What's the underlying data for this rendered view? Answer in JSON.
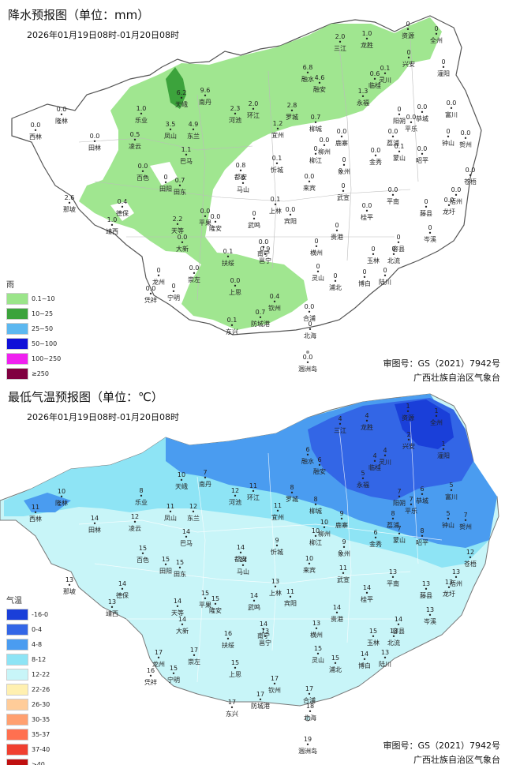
{
  "rain_map": {
    "title": "降水预报图（单位：mm）",
    "period": "2026年01月19日08时-01月20日08时",
    "legend_title": "雨",
    "legend": [
      {
        "label": "0.1~10",
        "color": "#9be58a"
      },
      {
        "label": "10~25",
        "color": "#3ca33c"
      },
      {
        "label": "25~50",
        "color": "#5cb8f0"
      },
      {
        "label": "50~100",
        "color": "#1010d8"
      },
      {
        "label": "100~250",
        "color": "#f020f0"
      },
      {
        "label": "≥250",
        "color": "#800040"
      }
    ],
    "stations": [
      {
        "name": "资源",
        "value": "0"
      },
      {
        "name": "全州",
        "value": "0"
      },
      {
        "name": "龙胜",
        "value": "1.0"
      },
      {
        "name": "三江",
        "value": "2.0"
      },
      {
        "name": "兴安",
        "value": "0"
      },
      {
        "name": "灌阳",
        "value": "0"
      },
      {
        "name": "融安",
        "value": "4.6"
      },
      {
        "name": "融水",
        "value": "6.8"
      },
      {
        "name": "临桂",
        "value": "0.6"
      },
      {
        "name": "灵川",
        "value": "0.1"
      },
      {
        "name": "永福",
        "value": "1.3"
      },
      {
        "name": "天峨",
        "value": "6.2"
      },
      {
        "name": "南丹",
        "value": "9.6"
      },
      {
        "name": "隆林",
        "value": "0.0"
      },
      {
        "name": "西林",
        "value": "0.0"
      },
      {
        "name": "乐业",
        "value": "1.0"
      },
      {
        "name": "环江",
        "value": "2.0"
      },
      {
        "name": "河池",
        "value": "2.3"
      },
      {
        "name": "罗城",
        "value": "2.8"
      },
      {
        "name": "恭城",
        "value": "0.0"
      },
      {
        "name": "阳朔",
        "value": "0"
      },
      {
        "name": "富川",
        "value": "0.0"
      },
      {
        "name": "平乐",
        "value": "0.0"
      },
      {
        "name": "钟山",
        "value": "0"
      },
      {
        "name": "贺州",
        "value": "0.0"
      },
      {
        "name": "田林",
        "value": "0.0"
      },
      {
        "name": "凌云",
        "value": "0.5"
      },
      {
        "name": "凤山",
        "value": "3.5"
      },
      {
        "name": "东兰",
        "value": "4.9"
      },
      {
        "name": "宜州",
        "value": "1.2"
      },
      {
        "name": "柳城",
        "value": "0.7"
      },
      {
        "name": "鹿寨",
        "value": "0.0"
      },
      {
        "name": "荔浦",
        "value": "0.0"
      },
      {
        "name": "柳州",
        "value": "0.0"
      },
      {
        "name": "柳江",
        "value": "0"
      },
      {
        "name": "金秀",
        "value": "0.0"
      },
      {
        "name": "蒙山",
        "value": "0.1"
      },
      {
        "name": "昭平",
        "value": "0.0"
      },
      {
        "name": "巴马",
        "value": "1.1"
      },
      {
        "name": "都安",
        "value": "0.8"
      },
      {
        "name": "忻城",
        "value": "0.1"
      },
      {
        "name": "象州",
        "value": "0"
      },
      {
        "name": "苍梧",
        "value": "0.0"
      },
      {
        "name": "百色",
        "value": "0.0"
      },
      {
        "name": "田阳",
        "value": "0"
      },
      {
        "name": "田东",
        "value": "0.7"
      },
      {
        "name": "马山",
        "value": "0"
      },
      {
        "name": "来宾",
        "value": "0.0"
      },
      {
        "name": "武宣",
        "value": "0"
      },
      {
        "name": "平南",
        "value": "0.0"
      },
      {
        "name": "藤县",
        "value": "0"
      },
      {
        "name": "梧州",
        "value": "0.0"
      },
      {
        "name": "龙圩",
        "value": "0.0"
      },
      {
        "name": "那坡",
        "value": "2.6"
      },
      {
        "name": "德保",
        "value": "0.4"
      },
      {
        "name": "平果",
        "value": "0.0"
      },
      {
        "name": "隆安",
        "value": "0.0"
      },
      {
        "name": "上林",
        "value": "0.1"
      },
      {
        "name": "宾阳",
        "value": "0.0"
      },
      {
        "name": "武鸣",
        "value": "0"
      },
      {
        "name": "桂平",
        "value": "0.0"
      },
      {
        "name": "靖西",
        "value": "1.0"
      },
      {
        "name": "天等",
        "value": "2.2"
      },
      {
        "name": "大新",
        "value": "0.0"
      },
      {
        "name": "贵港",
        "value": "0"
      },
      {
        "name": "岑溪",
        "value": "0"
      },
      {
        "name": "横州",
        "value": "0"
      },
      {
        "name": "容县",
        "value": "0"
      },
      {
        "name": "南宁",
        "value": "0.0"
      },
      {
        "name": "邕宁",
        "value": "0.9"
      },
      {
        "name": "扶绥",
        "value": "0.1"
      },
      {
        "name": "玉林",
        "value": "0"
      },
      {
        "name": "北流",
        "value": "0"
      },
      {
        "name": "龙州",
        "value": "0"
      },
      {
        "name": "崇左",
        "value": "0.0"
      },
      {
        "name": "灵山",
        "value": "0"
      },
      {
        "name": "浦北",
        "value": "0"
      },
      {
        "name": "博白",
        "value": "0"
      },
      {
        "name": "陆川",
        "value": "0"
      },
      {
        "name": "凭祥",
        "value": "0.0"
      },
      {
        "name": "宁明",
        "value": "0"
      },
      {
        "name": "上思",
        "value": "0.0"
      },
      {
        "name": "钦州",
        "value": "0.4"
      },
      {
        "name": "防城港",
        "value": "0.7"
      },
      {
        "name": "合浦",
        "value": "0.0"
      },
      {
        "name": "东兴",
        "value": "0.1"
      },
      {
        "name": "北海",
        "value": "0"
      },
      {
        "name": "涠洲岛",
        "value": "0.0"
      }
    ],
    "credit_approval": "审图号：GS（2021）7942号",
    "credit_org": "广西壮族自治区气象台"
  },
  "temp_map": {
    "title": "最低气温预报图（单位：℃）",
    "period": "2026年01月19日08时-01月20日08时",
    "legend_title": "气温",
    "legend": [
      {
        "label": "-16-0",
        "color": "#1a3fd9"
      },
      {
        "label": "0-4",
        "color": "#3366e6"
      },
      {
        "label": "4-8",
        "color": "#4a9cf0"
      },
      {
        "label": "8-12",
        "color": "#8ee4f5"
      },
      {
        "label": "12-22",
        "color": "#c8f5f8"
      },
      {
        "label": "22-26",
        "color": "#fff0b0"
      },
      {
        "label": "26-30",
        "color": "#ffcc99"
      },
      {
        "label": "30-35",
        "color": "#ffa070"
      },
      {
        "label": "35-37",
        "color": "#ff7050"
      },
      {
        "label": "37-40",
        "color": "#f04030"
      },
      {
        "label": ">40",
        "color": "#c01010"
      }
    ],
    "stations": [
      {
        "name": "资源",
        "value": "1"
      },
      {
        "name": "全州",
        "value": "1"
      },
      {
        "name": "龙胜",
        "value": "4"
      },
      {
        "name": "三江",
        "value": "4"
      },
      {
        "name": "兴安",
        "value": "2"
      },
      {
        "name": "灌阳",
        "value": "1"
      },
      {
        "name": "融安",
        "value": "6"
      },
      {
        "name": "融水",
        "value": "6"
      },
      {
        "name": "临桂",
        "value": "4"
      },
      {
        "name": "灵川",
        "value": "4"
      },
      {
        "name": "永福",
        "value": "5"
      },
      {
        "name": "天峨",
        "value": "10"
      },
      {
        "name": "南丹",
        "value": "7"
      },
      {
        "name": "隆林",
        "value": "10"
      },
      {
        "name": "西林",
        "value": "11"
      },
      {
        "name": "乐业",
        "value": "8"
      },
      {
        "name": "环江",
        "value": "11"
      },
      {
        "name": "河池",
        "value": "12"
      },
      {
        "name": "罗城",
        "value": "8"
      },
      {
        "name": "恭城",
        "value": "6"
      },
      {
        "name": "阳朔",
        "value": "7"
      },
      {
        "name": "富川",
        "value": "5"
      },
      {
        "name": "平乐",
        "value": "7"
      },
      {
        "name": "钟山",
        "value": "5"
      },
      {
        "name": "贺州",
        "value": "7"
      },
      {
        "name": "田林",
        "value": "14"
      },
      {
        "name": "凌云",
        "value": "12"
      },
      {
        "name": "凤山",
        "value": "11"
      },
      {
        "name": "东兰",
        "value": "12"
      },
      {
        "name": "宜州",
        "value": "11"
      },
      {
        "name": "柳城",
        "value": "8"
      },
      {
        "name": "鹿寨",
        "value": "9"
      },
      {
        "name": "荔浦",
        "value": "8"
      },
      {
        "name": "柳州",
        "value": "10"
      },
      {
        "name": "柳江",
        "value": "10"
      },
      {
        "name": "金秀",
        "value": "6"
      },
      {
        "name": "蒙山",
        "value": "7"
      },
      {
        "name": "昭平",
        "value": "8"
      },
      {
        "name": "巴马",
        "value": "14"
      },
      {
        "name": "都安",
        "value": "14"
      },
      {
        "name": "忻城",
        "value": "9"
      },
      {
        "name": "象州",
        "value": "9"
      },
      {
        "name": "苍梧",
        "value": "12"
      },
      {
        "name": "百色",
        "value": "15"
      },
      {
        "name": "田阳",
        "value": "15"
      },
      {
        "name": "田东",
        "value": "15"
      },
      {
        "name": "马山",
        "value": "14"
      },
      {
        "name": "来宾",
        "value": "10"
      },
      {
        "name": "武宣",
        "value": "11"
      },
      {
        "name": "平南",
        "value": "13"
      },
      {
        "name": "藤县",
        "value": "13"
      },
      {
        "name": "梧州",
        "value": "13"
      },
      {
        "name": "龙圩",
        "value": "13"
      },
      {
        "name": "那坡",
        "value": "13"
      },
      {
        "name": "德保",
        "value": "14"
      },
      {
        "name": "平果",
        "value": "15"
      },
      {
        "name": "隆安",
        "value": "15"
      },
      {
        "name": "上林",
        "value": "13"
      },
      {
        "name": "宾阳",
        "value": "11"
      },
      {
        "name": "武鸣",
        "value": "14"
      },
      {
        "name": "桂平",
        "value": "14"
      },
      {
        "name": "靖西",
        "value": "13"
      },
      {
        "name": "天等",
        "value": "14"
      },
      {
        "name": "大新",
        "value": "14"
      },
      {
        "name": "贵港",
        "value": "14"
      },
      {
        "name": "岑溪",
        "value": "13"
      },
      {
        "name": "横州",
        "value": "13"
      },
      {
        "name": "容县",
        "value": "14"
      },
      {
        "name": "南宁",
        "value": "14"
      },
      {
        "name": "邕宁",
        "value": "13"
      },
      {
        "name": "扶绥",
        "value": "16"
      },
      {
        "name": "玉林",
        "value": "15"
      },
      {
        "name": "北流",
        "value": "13"
      },
      {
        "name": "龙州",
        "value": "17"
      },
      {
        "name": "崇左",
        "value": "17"
      },
      {
        "name": "灵山",
        "value": "15"
      },
      {
        "name": "浦北",
        "value": "15"
      },
      {
        "name": "博白",
        "value": "14"
      },
      {
        "name": "陆川",
        "value": "13"
      },
      {
        "name": "凭祥",
        "value": "16"
      },
      {
        "name": "宁明",
        "value": "15"
      },
      {
        "name": "上思",
        "value": "15"
      },
      {
        "name": "钦州",
        "value": "17"
      },
      {
        "name": "防城港",
        "value": "17"
      },
      {
        "name": "合浦",
        "value": "17"
      },
      {
        "name": "东兴",
        "value": "17"
      },
      {
        "name": "北海",
        "value": "18"
      },
      {
        "name": "涠洲岛",
        "value": "19"
      }
    ],
    "credit_approval": "审图号：GS（2021）7942号",
    "credit_org": "广西壮族自治区气象台"
  }
}
